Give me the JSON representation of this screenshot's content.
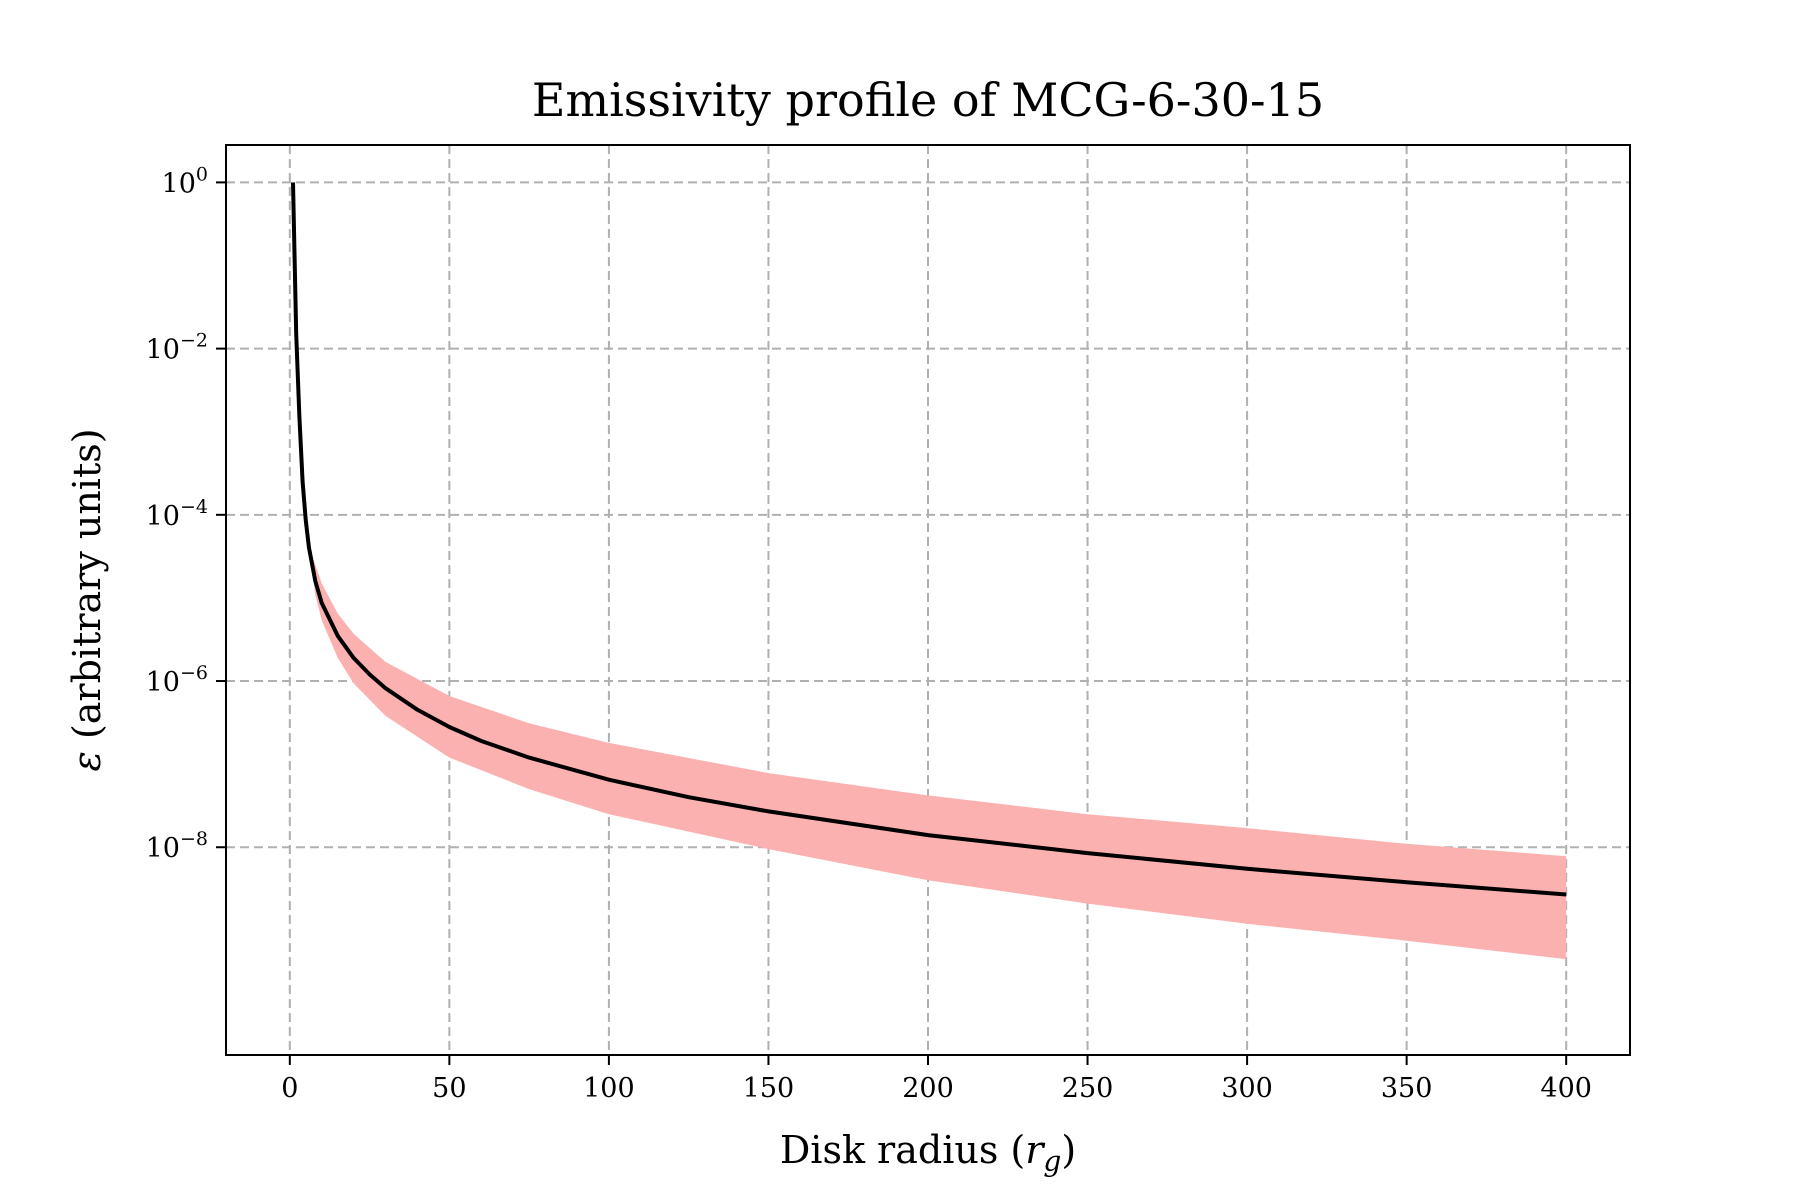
{
  "chart_data": {
    "type": "line",
    "title": "Emissivity profile of MCG-6-30-15",
    "xlabel": {
      "main": "Disk radius (",
      "symbol": "r",
      "sub": "g",
      "close": ")"
    },
    "ylabel": {
      "symbol": "ε",
      "rest": " (arbitrary units)"
    },
    "xlim": [
      -20,
      420
    ],
    "ylim_log10": [
      -10.5,
      0.45
    ],
    "yscale": "log",
    "grid": true,
    "x_ticks": [
      {
        "value": 0,
        "label": "0"
      },
      {
        "value": 50,
        "label": "50"
      },
      {
        "value": 100,
        "label": "100"
      },
      {
        "value": 150,
        "label": "150"
      },
      {
        "value": 200,
        "label": "200"
      },
      {
        "value": 250,
        "label": "250"
      },
      {
        "value": 300,
        "label": "300"
      },
      {
        "value": 350,
        "label": "350"
      },
      {
        "value": 400,
        "label": "400"
      }
    ],
    "y_ticks": [
      {
        "value": 1,
        "base": "10",
        "exp": "0"
      },
      {
        "value": 0.01,
        "base": "10",
        "exp": "−2"
      },
      {
        "value": 0.0001,
        "base": "10",
        "exp": "−4"
      },
      {
        "value": 1e-06,
        "base": "10",
        "exp": "−6"
      },
      {
        "value": 1e-08,
        "base": "10",
        "exp": "−8"
      }
    ],
    "series": [
      {
        "kind": "line",
        "color": "#000000",
        "x": [
          1,
          2,
          3,
          4,
          5,
          6,
          8,
          10,
          15,
          20,
          25,
          30,
          40,
          50,
          60,
          75,
          100,
          125,
          150,
          200,
          250,
          300,
          350,
          400
        ],
        "y": [
          1.0,
          0.015,
          0.0015,
          0.00025,
          8.5e-05,
          4e-05,
          1.6e-05,
          8.7e-06,
          3.5e-06,
          1.9e-06,
          1.2e-06,
          8.2e-07,
          4.5e-07,
          2.8e-07,
          1.9e-07,
          1.2e-07,
          6.5e-08,
          4e-08,
          2.7e-08,
          1.4e-08,
          8.5e-09,
          5.5e-09,
          3.8e-09,
          2.7e-09
        ]
      },
      {
        "kind": "band",
        "color": "#fcb1b1",
        "x": [
          6,
          8,
          10,
          15,
          20,
          30,
          50,
          75,
          100,
          150,
          200,
          250,
          300,
          350,
          400
        ],
        "y_upper": [
          4e-05,
          2.5e-05,
          1.5e-05,
          6.5e-06,
          3.7e-06,
          1.7e-06,
          6.6e-07,
          3.1e-07,
          1.8e-07,
          7.8e-08,
          4.2e-08,
          2.5e-08,
          1.7e-08,
          1.1e-08,
          7.8e-09
        ],
        "y_lower": [
          4e-05,
          1.1e-05,
          5.4e-06,
          1.9e-06,
          9.4e-07,
          3.8e-07,
          1.2e-07,
          5e-08,
          2.5e-08,
          9.5e-09,
          4e-09,
          2.1e-09,
          1.2e-09,
          7.5e-10,
          4.5e-10
        ]
      }
    ]
  }
}
